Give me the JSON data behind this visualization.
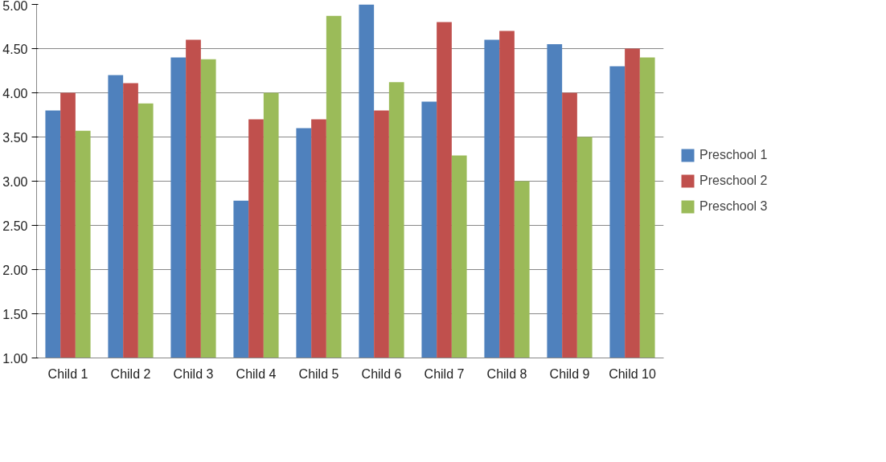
{
  "chart_data": {
    "type": "bar",
    "categories": [
      "Child 1",
      "Child 2",
      "Child 3",
      "Child 4",
      "Child 5",
      "Child 6",
      "Child 7",
      "Child 8",
      "Child 9",
      "Child 10"
    ],
    "series": [
      {
        "name": "Preschool 1",
        "color": "#4f81bd",
        "values": [
          3.8,
          4.2,
          4.4,
          2.78,
          3.6,
          5.0,
          3.9,
          4.6,
          4.55,
          4.3
        ]
      },
      {
        "name": "Preschool 2",
        "color": "#c0504d",
        "values": [
          4.0,
          4.11,
          4.6,
          3.7,
          3.7,
          3.8,
          4.8,
          4.7,
          4.0,
          4.5
        ]
      },
      {
        "name": "Preschool 3",
        "color": "#9bbb59",
        "values": [
          3.57,
          3.88,
          4.38,
          4.0,
          4.87,
          4.12,
          3.29,
          3.0,
          3.5,
          4.4
        ]
      }
    ],
    "ylim": [
      1,
      5
    ],
    "yticks": [
      {
        "value": 1,
        "label": "1.00"
      },
      {
        "value": 1.5,
        "label": "1.50"
      },
      {
        "value": 2,
        "label": "2.00"
      },
      {
        "value": 2.5,
        "label": "2.50"
      },
      {
        "value": 3,
        "label": "3.00"
      },
      {
        "value": 3.5,
        "label": "3.50"
      },
      {
        "value": 4,
        "label": "4.00"
      },
      {
        "value": 4.5,
        "label": "4.50"
      },
      {
        "value": 5,
        "label": "5.00"
      }
    ],
    "grid": "y",
    "legend": "right"
  }
}
